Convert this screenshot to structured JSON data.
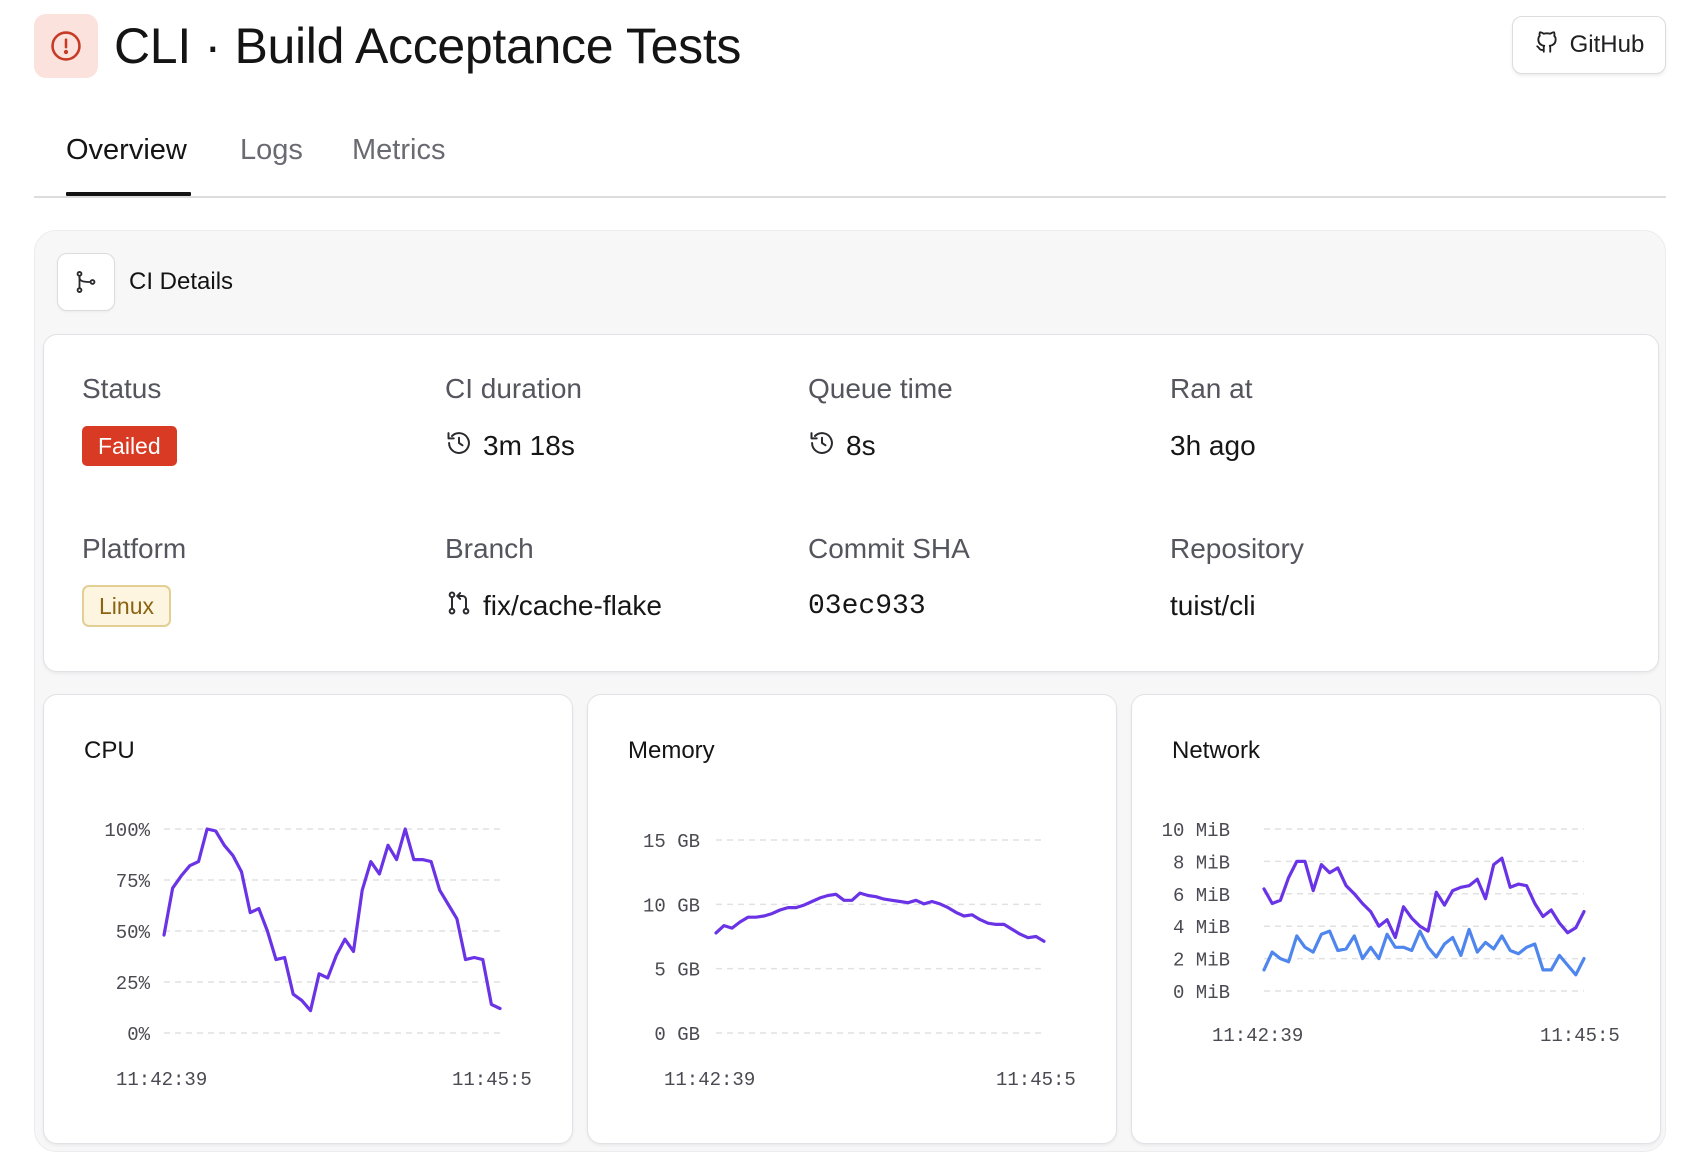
{
  "header": {
    "title": "CLI · Build Acceptance Tests",
    "status_icon": "alert-circle-icon",
    "github_button": "GitHub"
  },
  "tabs": [
    {
      "label": "Overview",
      "active": true
    },
    {
      "label": "Logs",
      "active": false
    },
    {
      "label": "Metrics",
      "active": false
    }
  ],
  "ci_details": {
    "title": "CI Details",
    "status": {
      "label": "Status",
      "value": "Failed"
    },
    "ci_duration": {
      "label": "CI duration",
      "value": "3m 18s"
    },
    "queue_time": {
      "label": "Queue time",
      "value": "8s"
    },
    "ran_at": {
      "label": "Ran at",
      "value": "3h ago"
    },
    "platform": {
      "label": "Platform",
      "value": "Linux"
    },
    "branch": {
      "label": "Branch",
      "value": "fix/cache-flake"
    },
    "commit_sha": {
      "label": "Commit SHA",
      "value": "03ec933"
    },
    "repository": {
      "label": "Repository",
      "value": "tuist/cli"
    }
  },
  "colors": {
    "failed": "#d93a24",
    "linux_badge_bg": "#fdf5e0",
    "linux_badge_text": "#8a6411",
    "series_primary": "#6a34e6",
    "series_secondary": "#4f86ee"
  },
  "chart_data": [
    {
      "type": "line",
      "title": "CPU",
      "y_ticks": [
        "100%",
        "75%",
        "50%",
        "25%",
        "0%"
      ],
      "ylim": [
        0,
        100
      ],
      "x_ticks": [
        "11:42:39",
        "11:45:5"
      ],
      "grid": true,
      "series": [
        {
          "values": [
            48,
            71,
            77,
            82,
            84,
            100,
            99,
            92,
            87,
            79,
            59,
            61,
            50,
            36,
            37,
            19,
            16,
            11,
            29,
            27,
            38,
            46,
            40,
            70,
            84,
            78,
            92,
            85,
            100,
            85,
            85,
            84,
            70,
            63,
            56,
            36,
            37,
            36,
            14,
            12
          ]
        }
      ]
    },
    {
      "type": "line",
      "title": "Memory",
      "y_ticks": [
        "15 GB",
        "10 GB",
        "5 GB",
        "0 GB"
      ],
      "ylim": [
        0,
        16
      ],
      "x_ticks": [
        "11:42:39",
        "11:45:5"
      ],
      "grid": true,
      "series": [
        {
          "values": [
            8.3,
            8.9,
            8.7,
            9.2,
            9.6,
            9.6,
            9.7,
            9.9,
            10.2,
            10.4,
            10.4,
            10.6,
            10.9,
            11.2,
            11.4,
            11.5,
            11.0,
            11.0,
            11.6,
            11.4,
            11.3,
            11.1,
            11.0,
            10.9,
            10.8,
            11.0,
            10.7,
            10.9,
            10.7,
            10.4,
            10.0,
            9.7,
            9.8,
            9.4,
            9.1,
            9.0,
            9.0,
            8.6,
            8.2,
            7.9,
            8.0,
            7.6
          ]
        }
      ]
    },
    {
      "type": "line",
      "title": "Network",
      "y_ticks": [
        "10 MiB",
        "8 MiB",
        "6 MiB",
        "4 MiB",
        "2 MiB",
        "0 MiB"
      ],
      "ylim": [
        0,
        10
      ],
      "x_ticks": [
        "11:42:39",
        "11:45:5"
      ],
      "grid": true,
      "series": [
        {
          "values": [
            6.3,
            5.4,
            5.6,
            7.0,
            8.0,
            8.0,
            6.2,
            7.8,
            7.3,
            7.6,
            6.5,
            6.0,
            5.4,
            4.9,
            4.0,
            4.4,
            3.3,
            5.2,
            4.5,
            4.0,
            3.7,
            6.1,
            5.3,
            6.2,
            6.4,
            6.5,
            6.9,
            5.7,
            7.8,
            8.2,
            6.4,
            6.6,
            6.5,
            5.4,
            4.6,
            5.0,
            4.2,
            3.6,
            3.9,
            4.9
          ]
        },
        {
          "values": [
            1.3,
            2.4,
            2.0,
            1.8,
            3.4,
            2.7,
            2.4,
            3.5,
            3.7,
            2.5,
            2.6,
            3.4,
            2.0,
            2.7,
            2.0,
            3.5,
            2.7,
            2.7,
            2.5,
            3.7,
            2.7,
            2.1,
            2.9,
            3.3,
            2.2,
            3.8,
            2.4,
            3.0,
            2.6,
            3.4,
            2.5,
            2.3,
            2.7,
            2.9,
            1.3,
            1.3,
            2.2,
            1.6,
            1.0,
            2.0
          ]
        }
      ]
    }
  ]
}
